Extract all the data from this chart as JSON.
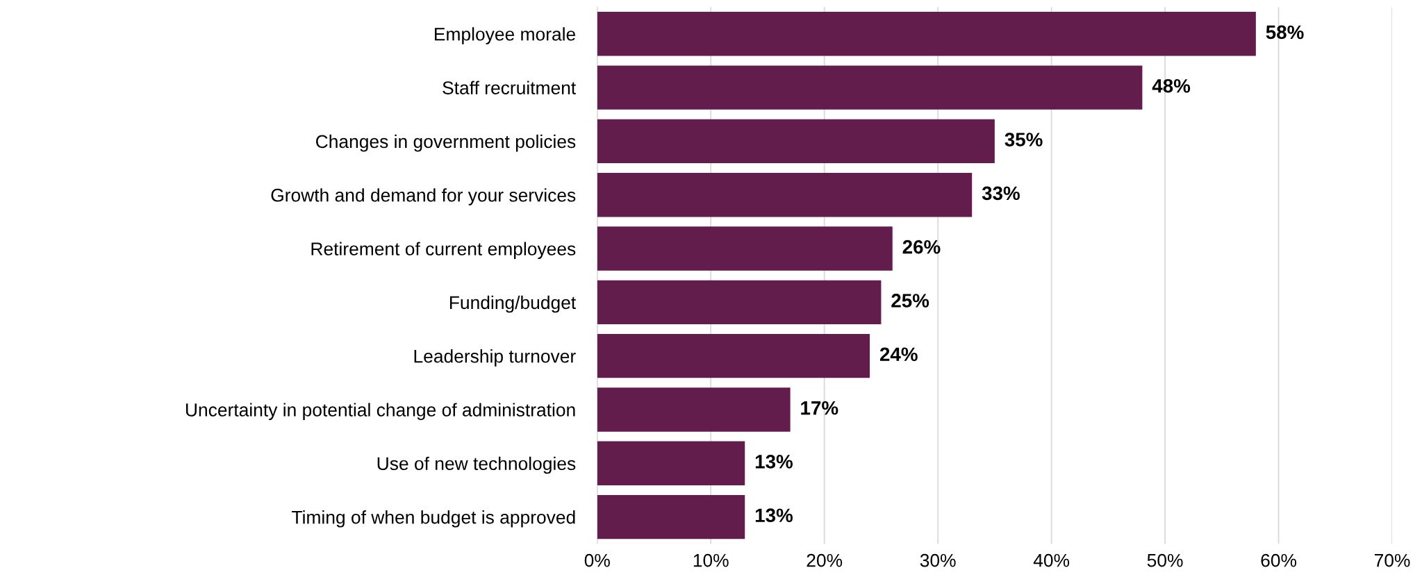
{
  "chart_data": {
    "type": "bar",
    "orientation": "horizontal",
    "categories": [
      "Employee morale",
      "Staff recruitment",
      "Changes in government policies",
      "Growth and demand for your services",
      "Retirement of current employees",
      "Funding/budget",
      "Leadership turnover",
      "Uncertainty in potential change of administration",
      "Use of new technologies",
      "Timing of when budget is approved"
    ],
    "values": [
      58,
      48,
      35,
      33,
      26,
      25,
      24,
      17,
      13,
      13
    ],
    "value_labels": [
      "58%",
      "48%",
      "35%",
      "33%",
      "26%",
      "25%",
      "24%",
      "17%",
      "13%",
      "13%"
    ],
    "color": "#631d4c",
    "xlim": [
      0,
      70
    ],
    "xticks": [
      {
        "value": 0,
        "label": "0%"
      },
      {
        "value": 10,
        "label": "10%"
      },
      {
        "value": 20,
        "label": "20%"
      },
      {
        "value": 30,
        "label": "30%"
      },
      {
        "value": 40,
        "label": "40%"
      },
      {
        "value": 50,
        "label": "50%"
      },
      {
        "value": 60,
        "label": "60%"
      },
      {
        "value": 70,
        "label": "70%"
      }
    ],
    "grid": "x"
  }
}
